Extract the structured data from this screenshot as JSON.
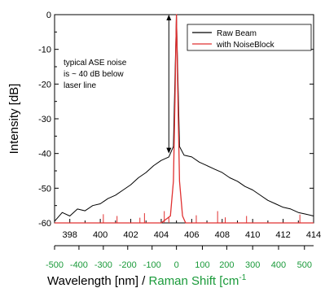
{
  "chart_data": {
    "type": "line",
    "ylabel": "Intensity [dB]",
    "xlabel_main": "Wavelength [nm]",
    "xlabel_separator": " / ",
    "xlabel_secondary": "Raman Shift [cm",
    "xlabel_secondary_superscript": "-1",
    "ylim": [
      -60,
      0
    ],
    "xlim": [
      397,
      414
    ],
    "y_ticks": [
      "0",
      "-10",
      "-20",
      "-30",
      "-40",
      "-50",
      "-60"
    ],
    "x_ticks": [
      "398",
      "400",
      "402",
      "404",
      "406",
      "408",
      "410",
      "412",
      "414"
    ],
    "raman_ticks": [
      "-500",
      "-400",
      "-300",
      "-200",
      "-100",
      "0",
      "100",
      "200",
      "300",
      "400",
      "500"
    ],
    "raman_tick_wavelengths": [
      397.0,
      398.6,
      400.2,
      401.8,
      403.4,
      405.0,
      406.7,
      408.3,
      410.0,
      411.7,
      413.4
    ],
    "legend_position": "top-right",
    "annotation": {
      "lines": [
        "typical ASE noise",
        "is ~ 40 dB below",
        "laser line"
      ],
      "arrow_x": 404.5,
      "arrow_from_y": 0,
      "arrow_to_y": -40
    },
    "series": [
      {
        "name": "Raw Beam",
        "color": "#000000",
        "x": [
          397.0,
          397.5,
          398.0,
          398.5,
          399.0,
          399.5,
          400.0,
          400.5,
          401.0,
          401.5,
          402.0,
          402.5,
          403.0,
          403.5,
          404.0,
          404.5,
          404.8,
          405.0,
          405.2,
          405.5,
          406.0,
          406.5,
          407.0,
          407.5,
          408.0,
          408.5,
          409.0,
          409.5,
          410.0,
          410.5,
          411.0,
          411.5,
          412.0,
          412.5,
          413.0,
          413.5,
          414.0
        ],
        "y": [
          -59.5,
          -57,
          -58,
          -56,
          -56.5,
          -55,
          -54.5,
          -53,
          -52,
          -50.5,
          -49,
          -47,
          -45.5,
          -43.5,
          -42,
          -41,
          -38,
          0,
          -38,
          -40.5,
          -41,
          -42.5,
          -43.5,
          -44.5,
          -45.5,
          -47,
          -48,
          -49.5,
          -50.5,
          -52,
          -53.5,
          -54.5,
          -55.5,
          -56,
          -57,
          -57.5,
          -58
        ]
      },
      {
        "name": "with NoiseBlock",
        "color": "#e03030",
        "x": [
          397.0,
          398.0,
          399.0,
          400.0,
          401.0,
          402.0,
          403.0,
          404.0,
          404.6,
          404.8,
          404.9,
          405.0,
          405.1,
          405.2,
          405.4,
          405.6,
          406.0,
          407.0,
          408.0,
          409.0,
          410.0,
          411.0,
          412.0,
          413.0,
          414.0
        ],
        "y": [
          -60,
          -60,
          -60,
          -60,
          -60,
          -60,
          -60,
          -60,
          -58,
          -48,
          -25,
          0,
          -25,
          -48,
          -58,
          -60,
          -60,
          -60,
          -60,
          -60,
          -60,
          -60,
          -60,
          -60,
          -60
        ],
        "spikes_x": [
          400.2,
          401.1,
          402.6,
          402.9,
          404.2,
          404.5,
          406.3,
          407.7,
          408.2,
          409.6,
          413.1
        ],
        "spikes_y": [
          -57.5,
          -58.0,
          -58.5,
          -57.2,
          -56.6,
          -58.2,
          -57.8,
          -56.6,
          -58.4,
          -58.0,
          -57.6
        ]
      }
    ]
  }
}
